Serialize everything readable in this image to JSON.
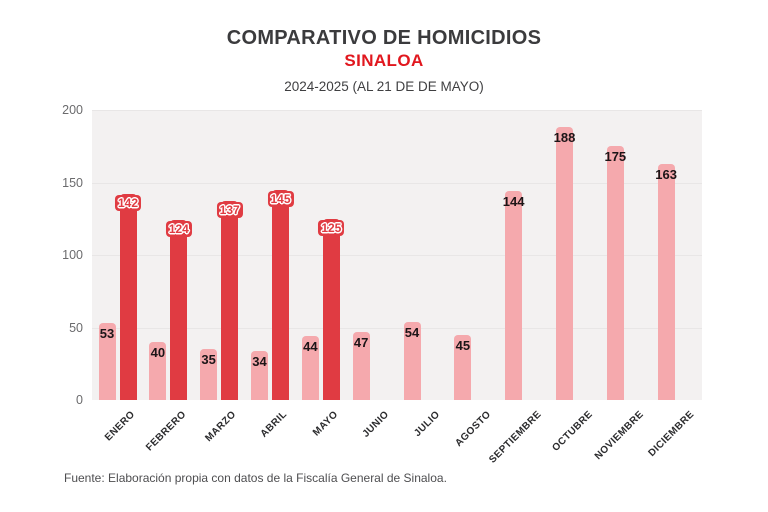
{
  "header": {
    "title": "COMPARATIVO DE HOMICIDIOS",
    "subtitle": "SINALOA",
    "subtitle_color": "#e1171e",
    "period": "2024-2025 (AL 21 DE DE MAYO)"
  },
  "footer": {
    "source": "Fuente: Elaboración propia con datos de la Fiscalía General de Sinaloa."
  },
  "chart_data": {
    "type": "bar",
    "title": "COMPARATIVO DE HOMICIDIOS",
    "subtitle": "SINALOA",
    "period_note": "2024-2025 (AL 21 DE DE MAYO)",
    "categories": [
      "ENERO",
      "FEBRERO",
      "MARZO",
      "ABRIL",
      "MAYO",
      "JUNIO",
      "JULIO",
      "AGOSTO",
      "SEPTIEMBRE",
      "OCTUBRE",
      "NOVIEMBRE",
      "DICIEMBRE"
    ],
    "series": [
      {
        "name": "2024",
        "color": "#f5a9ad",
        "label_color": "#1c1517",
        "values": [
          53,
          40,
          35,
          34,
          44,
          47,
          54,
          45,
          144,
          188,
          175,
          163
        ]
      },
      {
        "name": "2025",
        "color": "#e03b42",
        "label_style": "chip-white-outline",
        "values": [
          142,
          124,
          137,
          145,
          125,
          null,
          null,
          null,
          null,
          null,
          null,
          null
        ]
      }
    ],
    "ylim": [
      0,
      200
    ],
    "yticks": [
      0,
      50,
      100,
      150,
      200
    ],
    "grid": "horizontal-subtle",
    "legend": "none",
    "plot_background": "#f3f1f1",
    "source": "Fuente: Elaboración propia con datos de la Fiscalía General de Sinaloa."
  }
}
